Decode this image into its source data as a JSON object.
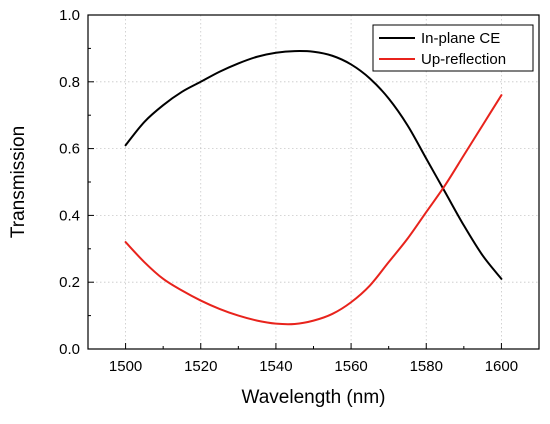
{
  "chart_data": {
    "type": "line",
    "title": "",
    "xlabel": "Wavelength (nm)",
    "ylabel": "Transmission",
    "xlim": [
      1490,
      1610
    ],
    "ylim": [
      0.0,
      1.0
    ],
    "xticks": [
      1500,
      1520,
      1540,
      1560,
      1580,
      1600
    ],
    "yticks": [
      0.0,
      0.2,
      0.4,
      0.6,
      0.8,
      1.0
    ],
    "ytick_labels": [
      "0.0",
      "0.2",
      "0.4",
      "0.6",
      "0.8",
      "1.0"
    ],
    "grid": true,
    "legend_position": "top-right",
    "x": [
      1500,
      1505,
      1510,
      1515,
      1520,
      1525,
      1530,
      1535,
      1540,
      1545,
      1550,
      1555,
      1560,
      1565,
      1570,
      1575,
      1580,
      1585,
      1590,
      1595,
      1600
    ],
    "series": [
      {
        "name": "In-plane CE",
        "color": "#000000",
        "values": [
          0.61,
          0.68,
          0.73,
          0.77,
          0.8,
          0.83,
          0.855,
          0.875,
          0.887,
          0.892,
          0.89,
          0.878,
          0.852,
          0.81,
          0.75,
          0.67,
          0.57,
          0.47,
          0.37,
          0.28,
          0.21
        ]
      },
      {
        "name": "Up-reflection",
        "color": "#e8231c",
        "values": [
          0.32,
          0.26,
          0.21,
          0.175,
          0.145,
          0.12,
          0.1,
          0.085,
          0.076,
          0.075,
          0.085,
          0.105,
          0.14,
          0.19,
          0.26,
          0.33,
          0.41,
          0.49,
          0.58,
          0.67,
          0.76
        ]
      }
    ]
  }
}
